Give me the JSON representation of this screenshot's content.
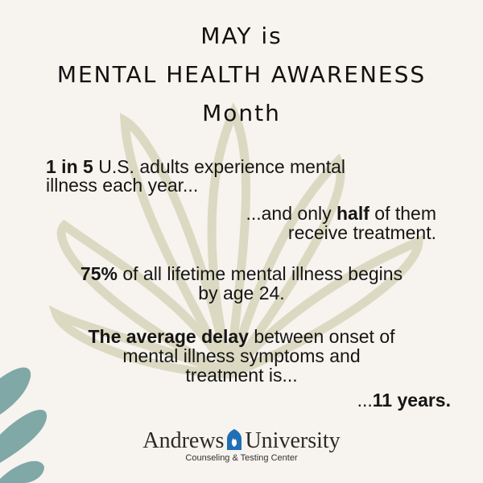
{
  "title": {
    "line1": "MAY is",
    "line2": "MENTAL HEALTH AWARENESS",
    "line3": "Month"
  },
  "stat1": {
    "bold": "1 in 5",
    "line1_rest": " U.S. adults experience mental",
    "line2": "illness each year...",
    "line3_pre": "...and only ",
    "line3_bold": "half",
    "line3_post": " of them",
    "line4": "receive treatment."
  },
  "stat2": {
    "bold": "75%",
    "line1_rest": " of all lifetime mental illness begins",
    "line2": "by age 24."
  },
  "stat3": {
    "bold": "The average delay",
    "line1_rest": " between onset of",
    "line2": "mental illness symptoms and",
    "line3": "treatment is...",
    "line4_pre": "...",
    "line4_bold": "11 years."
  },
  "logo": {
    "name_left": "Andrews",
    "name_right": "University",
    "subtitle": "Counseling & Testing Center",
    "brand_color": "#1f6fb5"
  },
  "colors": {
    "background": "#f7f3ee",
    "leaf_outline": "#dcd9c2",
    "leaf_teal": "#7fa8a7"
  }
}
